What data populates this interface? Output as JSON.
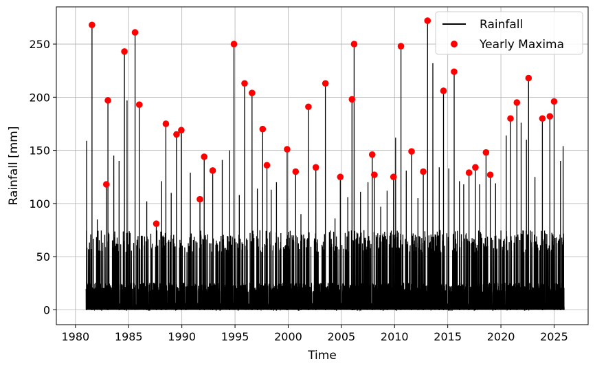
{
  "chart_data": {
    "type": "line",
    "xlabel": "Time",
    "ylabel": "Rainfall [mm]",
    "xlim": [
      1978.2,
      2028.2
    ],
    "ylim": [
      -14,
      285
    ],
    "x_ticks": [
      1980,
      1985,
      1990,
      1995,
      2000,
      2005,
      2010,
      2015,
      2020,
      2025
    ],
    "x_tick_labels": [
      "1980",
      "1985",
      "1990",
      "1995",
      "2000",
      "2005",
      "2010",
      "2015",
      "2020",
      "2025"
    ],
    "y_ticks": [
      0,
      50,
      100,
      150,
      200,
      250
    ],
    "y_tick_labels": [
      "0",
      "50",
      "100",
      "150",
      "200",
      "250"
    ],
    "grid": true,
    "legend_position": "top-right",
    "line_color": "#000000",
    "marker_color": "#ff0000",
    "series": [
      {
        "name": "Rainfall",
        "kind": "line",
        "spikes": [
          [
            1981.05,
            159
          ],
          [
            1981.55,
            268
          ],
          [
            1982.05,
            85
          ],
          [
            1982.9,
            118
          ],
          [
            1983.05,
            197
          ],
          [
            1983.6,
            145
          ],
          [
            1984.1,
            140
          ],
          [
            1984.6,
            243
          ],
          [
            1984.85,
            197
          ],
          [
            1985.6,
            261
          ],
          [
            1986.0,
            193
          ],
          [
            1986.7,
            102
          ],
          [
            1987.6,
            81
          ],
          [
            1988.1,
            121
          ],
          [
            1988.5,
            175
          ],
          [
            1989.0,
            110
          ],
          [
            1989.5,
            165
          ],
          [
            1989.95,
            169
          ],
          [
            1990.8,
            129
          ],
          [
            1991.7,
            104
          ],
          [
            1992.1,
            144
          ],
          [
            1992.9,
            131
          ],
          [
            1993.8,
            141
          ],
          [
            1994.5,
            150
          ],
          [
            1994.9,
            250
          ],
          [
            1995.4,
            108
          ],
          [
            1995.9,
            213
          ],
          [
            1996.6,
            204
          ],
          [
            1997.1,
            114
          ],
          [
            1997.6,
            170
          ],
          [
            1998.0,
            136
          ],
          [
            1998.4,
            113
          ],
          [
            1998.9,
            120
          ],
          [
            1999.9,
            151
          ],
          [
            2000.7,
            130
          ],
          [
            2001.2,
            90
          ],
          [
            2001.9,
            191
          ],
          [
            2002.6,
            134
          ],
          [
            2003.5,
            213
          ],
          [
            2004.4,
            86
          ],
          [
            2004.9,
            125
          ],
          [
            2005.6,
            106
          ],
          [
            2006.0,
            198
          ],
          [
            2006.2,
            250
          ],
          [
            2006.8,
            111
          ],
          [
            2007.5,
            120
          ],
          [
            2007.9,
            146
          ],
          [
            2008.1,
            127
          ],
          [
            2008.7,
            97
          ],
          [
            2009.3,
            112
          ],
          [
            2009.9,
            125
          ],
          [
            2010.1,
            162
          ],
          [
            2010.6,
            248
          ],
          [
            2011.1,
            131
          ],
          [
            2011.6,
            149
          ],
          [
            2012.2,
            105
          ],
          [
            2012.7,
            130
          ],
          [
            2013.1,
            272
          ],
          [
            2013.6,
            232
          ],
          [
            2014.2,
            134
          ],
          [
            2014.6,
            206
          ],
          [
            2015.1,
            133
          ],
          [
            2015.6,
            224
          ],
          [
            2016.1,
            121
          ],
          [
            2016.5,
            118
          ],
          [
            2017.0,
            129
          ],
          [
            2017.6,
            134
          ],
          [
            2018.0,
            118
          ],
          [
            2018.6,
            148
          ],
          [
            2019.0,
            127
          ],
          [
            2019.5,
            119
          ],
          [
            2020.5,
            164
          ],
          [
            2020.9,
            180
          ],
          [
            2021.5,
            195
          ],
          [
            2021.9,
            176
          ],
          [
            2022.4,
            160
          ],
          [
            2022.6,
            218
          ],
          [
            2023.2,
            125
          ],
          [
            2023.9,
            180
          ],
          [
            2024.6,
            182
          ],
          [
            2025.0,
            196
          ],
          [
            2025.6,
            140
          ],
          [
            2025.85,
            154
          ]
        ]
      },
      {
        "name": "Yearly Maxima",
        "kind": "scatter",
        "points": [
          [
            1981.55,
            268
          ],
          [
            1982.9,
            118
          ],
          [
            1983.05,
            197
          ],
          [
            1984.6,
            243
          ],
          [
            1985.6,
            261
          ],
          [
            1986.0,
            193
          ],
          [
            1987.6,
            81
          ],
          [
            1988.5,
            175
          ],
          [
            1989.5,
            165
          ],
          [
            1989.95,
            169
          ],
          [
            1991.7,
            104
          ],
          [
            1992.1,
            144
          ],
          [
            1992.9,
            131
          ],
          [
            1994.9,
            250
          ],
          [
            1995.9,
            213
          ],
          [
            1996.6,
            204
          ],
          [
            1997.6,
            170
          ],
          [
            1998.0,
            136
          ],
          [
            1999.9,
            151
          ],
          [
            2000.7,
            130
          ],
          [
            2001.9,
            191
          ],
          [
            2002.6,
            134
          ],
          [
            2003.5,
            213
          ],
          [
            2004.9,
            125
          ],
          [
            2006.0,
            198
          ],
          [
            2006.2,
            250
          ],
          [
            2007.9,
            146
          ],
          [
            2008.1,
            127
          ],
          [
            2009.9,
            125
          ],
          [
            2010.6,
            248
          ],
          [
            2011.6,
            149
          ],
          [
            2012.7,
            130
          ],
          [
            2013.1,
            272
          ],
          [
            2014.6,
            206
          ],
          [
            2015.6,
            224
          ],
          [
            2017.0,
            129
          ],
          [
            2017.6,
            134
          ],
          [
            2018.6,
            148
          ],
          [
            2019.0,
            127
          ],
          [
            2020.9,
            180
          ],
          [
            2021.5,
            195
          ],
          [
            2022.6,
            218
          ],
          [
            2023.9,
            180
          ],
          [
            2024.6,
            182
          ],
          [
            2025.0,
            196
          ]
        ]
      }
    ]
  }
}
